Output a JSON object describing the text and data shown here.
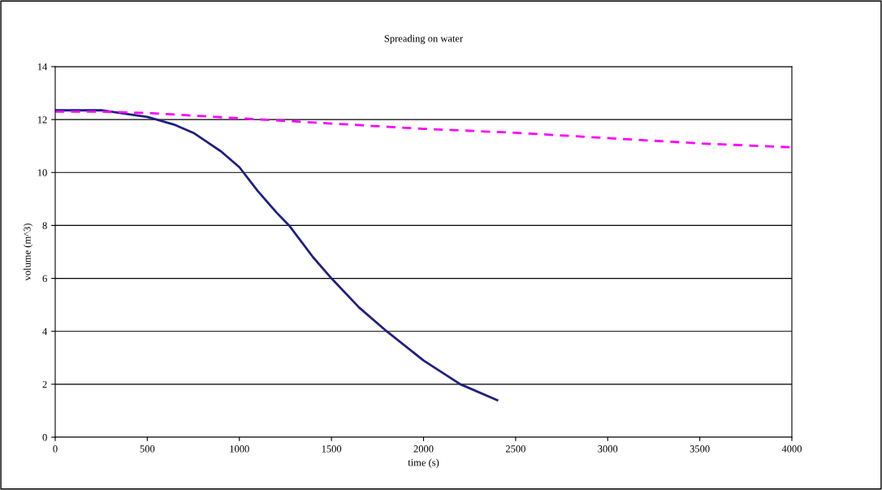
{
  "chart_data": {
    "type": "line",
    "title": "Spreading on water",
    "xlabel": "time (s)",
    "ylabel": "volume (m^3)",
    "xlim": [
      0,
      4000
    ],
    "xticks": [
      0,
      500,
      1000,
      1500,
      2000,
      2500,
      3000,
      3500,
      4000
    ],
    "ylim": [
      0,
      14
    ],
    "yticks": [
      0,
      2,
      4,
      6,
      8,
      10,
      12,
      14
    ],
    "grid": "y",
    "series": [
      {
        "color": "#1f1f80",
        "line_style": "solid",
        "x": [
          0,
          250,
          400,
          500,
          650,
          750,
          900,
          1000,
          1100,
          1200,
          1270,
          1400,
          1500,
          1650,
          1800,
          2000,
          2200,
          2400
        ],
        "values": [
          12.35,
          12.35,
          12.2,
          12.1,
          11.8,
          11.5,
          10.8,
          10.2,
          9.3,
          8.5,
          8.0,
          6.8,
          6.0,
          4.9,
          4.0,
          2.9,
          2.0,
          1.4
        ]
      },
      {
        "color": "#ff00ff",
        "line_style": "dashed",
        "x": [
          0,
          250,
          500,
          1000,
          1500,
          2000,
          2500,
          3000,
          3500,
          4000
        ],
        "values": [
          12.3,
          12.3,
          12.25,
          12.05,
          11.85,
          11.65,
          11.5,
          11.3,
          11.1,
          10.95
        ]
      }
    ]
  }
}
